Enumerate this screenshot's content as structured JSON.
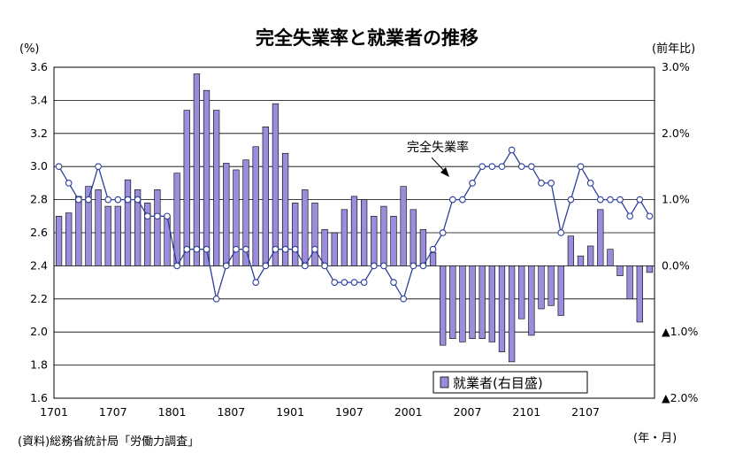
{
  "chart_data": {
    "type": "bar+line",
    "title": "完全失業率と就業者の推移",
    "left_axis": {
      "unit": "(%)",
      "ylim": [
        1.6,
        3.6
      ],
      "ticks": [
        1.6,
        1.8,
        2.0,
        2.2,
        2.4,
        2.6,
        2.8,
        3.0,
        3.2,
        3.4,
        3.6
      ],
      "tick_labels": [
        "1.6",
        "1.8",
        "2.0",
        "2.2",
        "2.4",
        "2.6",
        "2.8",
        "3.0",
        "3.2",
        "3.4",
        "3.6"
      ]
    },
    "right_axis": {
      "unit": "(前年比)",
      "ylim": [
        -2.0,
        3.0
      ],
      "ticks": [
        3.0,
        2.0,
        1.0,
        0.0,
        -1.0,
        -2.0
      ],
      "tick_labels": [
        "3.0%",
        "2.0%",
        "1.0%",
        "0.0%",
        "▲1.0%",
        "▲2.0%"
      ]
    },
    "x_axis": {
      "unit": "(年・月)",
      "tick_labels": [
        "1701",
        "1707",
        "1801",
        "1807",
        "1901",
        "1907",
        "2001",
        "2007",
        "2101",
        "2107"
      ]
    },
    "grid": true,
    "series": [
      {
        "name": "就業者(右目盛)",
        "axis": "right",
        "type": "bar",
        "color": "#9b8cdc",
        "values": [
          0.75,
          0.8,
          1.05,
          1.2,
          1.15,
          0.9,
          0.9,
          1.3,
          1.15,
          0.95,
          1.15,
          0.75,
          1.4,
          2.35,
          2.9,
          2.65,
          2.35,
          1.55,
          1.45,
          1.6,
          1.8,
          2.1,
          2.45,
          1.7,
          0.95,
          1.15,
          0.95,
          0.55,
          0.5,
          0.85,
          1.05,
          1.0,
          0.75,
          0.9,
          0.75,
          1.2,
          0.85,
          0.55,
          0.2,
          -1.2,
          -1.1,
          -1.15,
          -1.1,
          -1.1,
          -1.15,
          -1.3,
          -1.45,
          -0.8,
          -1.05,
          -0.65,
          -0.6,
          -0.75,
          0.45,
          0.15,
          0.3,
          0.85,
          0.25,
          -0.15,
          -0.5,
          -0.85,
          -0.1
        ]
      },
      {
        "name": "完全失業率",
        "axis": "left",
        "type": "line",
        "color": "#2e3f9b",
        "values": [
          3.0,
          2.9,
          2.8,
          2.8,
          3.0,
          2.8,
          2.8,
          2.8,
          2.8,
          2.7,
          2.7,
          2.7,
          2.4,
          2.5,
          2.5,
          2.5,
          2.2,
          2.4,
          2.5,
          2.5,
          2.3,
          2.4,
          2.5,
          2.5,
          2.5,
          2.4,
          2.5,
          2.4,
          2.3,
          2.3,
          2.3,
          2.3,
          2.4,
          2.4,
          2.3,
          2.2,
          2.4,
          2.4,
          2.5,
          2.6,
          2.8,
          2.8,
          2.9,
          3.0,
          3.0,
          3.0,
          3.1,
          3.0,
          3.0,
          2.9,
          2.9,
          2.6,
          2.8,
          3.0,
          2.9,
          2.8,
          2.8,
          2.8,
          2.7,
          2.8,
          2.7
        ]
      }
    ],
    "annotation": "完全失業率",
    "legend": {
      "label": "就業者(右目盛)",
      "position": "bottom-right"
    },
    "source_note": "(資料)総務省統計局「労働力調査」"
  }
}
